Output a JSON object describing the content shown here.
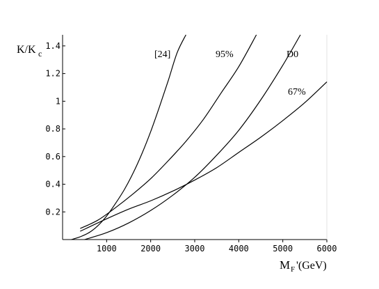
{
  "chart_data": {
    "type": "line",
    "title": "",
    "ylabel": "K/K_c",
    "ylabel_main": "K/K",
    "ylabel_sub": "c",
    "xlabel": "M_F'(GeV)",
    "xlabel_main": "M",
    "xlabel_sub": "F",
    "xlabel_rest": "'(GeV)",
    "xlim": [
      0,
      6000
    ],
    "ylim": [
      0,
      1.48
    ],
    "x_ticks": [
      1000,
      2000,
      3000,
      4000,
      5000,
      6000
    ],
    "x_tick_labels": [
      "1000",
      "2000",
      "3000",
      "4000",
      "5000",
      "6000"
    ],
    "y_ticks": [
      0.2,
      0.4,
      0.6,
      0.8,
      1.0,
      1.2,
      1.4
    ],
    "y_tick_labels": [
      "0.2",
      "0.4",
      "0.6",
      "0.8",
      "1",
      "1.2",
      "1.4"
    ],
    "grid": false,
    "legend": "none",
    "series": [
      {
        "name": "[24]",
        "x": [
          200,
          400,
          600,
          800,
          1000,
          1200,
          1400,
          1600,
          1800,
          2000,
          2200,
          2400,
          2600,
          2800
        ],
        "y": [
          0.0,
          0.02,
          0.05,
          0.1,
          0.17,
          0.26,
          0.36,
          0.48,
          0.62,
          0.78,
          0.96,
          1.15,
          1.35,
          1.48
        ]
      },
      {
        "name": "95%",
        "x": [
          400,
          800,
          1200,
          1600,
          2000,
          2400,
          2800,
          3200,
          3600,
          4000,
          4400
        ],
        "y": [
          0.08,
          0.14,
          0.23,
          0.33,
          0.44,
          0.57,
          0.71,
          0.87,
          1.06,
          1.25,
          1.48
        ]
      },
      {
        "name": "D0",
        "x": [
          500,
          1000,
          1500,
          2000,
          2500,
          3000,
          3500,
          4000,
          4500,
          5000,
          5400
        ],
        "y": [
          0.0,
          0.05,
          0.12,
          0.21,
          0.32,
          0.45,
          0.61,
          0.79,
          1.01,
          1.26,
          1.48
        ]
      },
      {
        "name": "67%",
        "x": [
          400,
          1000,
          1500,
          2000,
          2500,
          3000,
          3500,
          4000,
          4500,
          5000,
          5500,
          6000
        ],
        "y": [
          0.06,
          0.15,
          0.22,
          0.28,
          0.35,
          0.43,
          0.52,
          0.63,
          0.74,
          0.86,
          0.99,
          1.14
        ]
      }
    ],
    "curve_labels": [
      "[24]",
      "95%",
      "D0",
      "67%"
    ]
  }
}
